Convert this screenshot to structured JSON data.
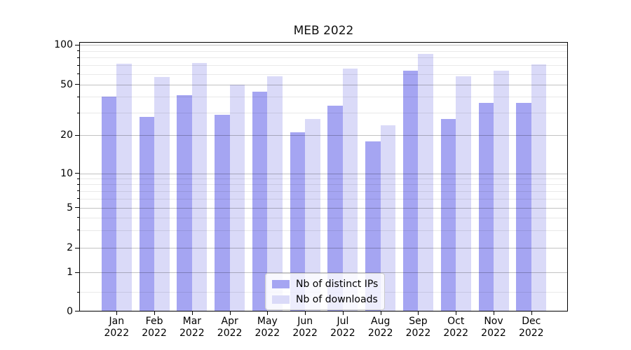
{
  "chart_data": {
    "type": "bar",
    "title": "MEB 2022",
    "categories": [
      "Jan 2022",
      "Feb 2022",
      "Mar 2022",
      "Apr 2022",
      "May 2022",
      "Jun 2022",
      "Jul 2022",
      "Aug 2022",
      "Sep 2022",
      "Oct 2022",
      "Nov 2022",
      "Dec 2022"
    ],
    "series": [
      {
        "name": "Nb of distinct IPs",
        "color": "#a5a5f2",
        "values": [
          40,
          28,
          41,
          29,
          44,
          21,
          34,
          18,
          64,
          27,
          36,
          36
        ]
      },
      {
        "name": "Nb of downloads",
        "color": "#dadaf8",
        "values": [
          72,
          57,
          73,
          50,
          58,
          27,
          66,
          24,
          85,
          58,
          64,
          71
        ]
      }
    ],
    "xlabel": "",
    "ylabel": "",
    "yscale": "symlog",
    "y_ticks": [
      0,
      1,
      2,
      5,
      10,
      20,
      50,
      100
    ],
    "ylim": [
      0,
      105
    ],
    "grid": "both",
    "legend_position": "lower center"
  }
}
